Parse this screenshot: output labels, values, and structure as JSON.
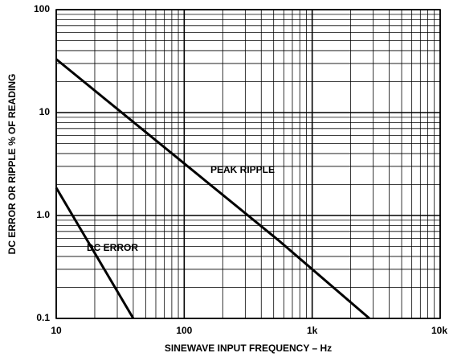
{
  "chart_data": {
    "type": "line",
    "xlabel": "SINEWAVE INPUT FREQUENCY – Hz",
    "ylabel": "DC ERROR OR RIPPLE % OF READING",
    "xscale": "log",
    "yscale": "log",
    "grid": true,
    "minor_grid": true,
    "xlim": [
      10,
      10000
    ],
    "xticks": [
      10,
      100,
      {
        "value": 1000,
        "label": "1k"
      },
      {
        "value": 10000,
        "label": "10k"
      }
    ],
    "ylim": [
      0.1,
      100
    ],
    "yticks": [
      0.1,
      {
        "value": 1,
        "label": "1.0"
      },
      10,
      100
    ],
    "series": [
      {
        "name": "PEAK RIPPLE",
        "color": "#000000",
        "x": [
          10,
          540,
          2800
        ],
        "values": [
          33,
          0.58,
          0.1
        ]
      },
      {
        "name": "DC ERROR",
        "color": "#000000",
        "x": [
          10,
          40
        ],
        "values": [
          1.86,
          0.1
        ]
      }
    ]
  }
}
